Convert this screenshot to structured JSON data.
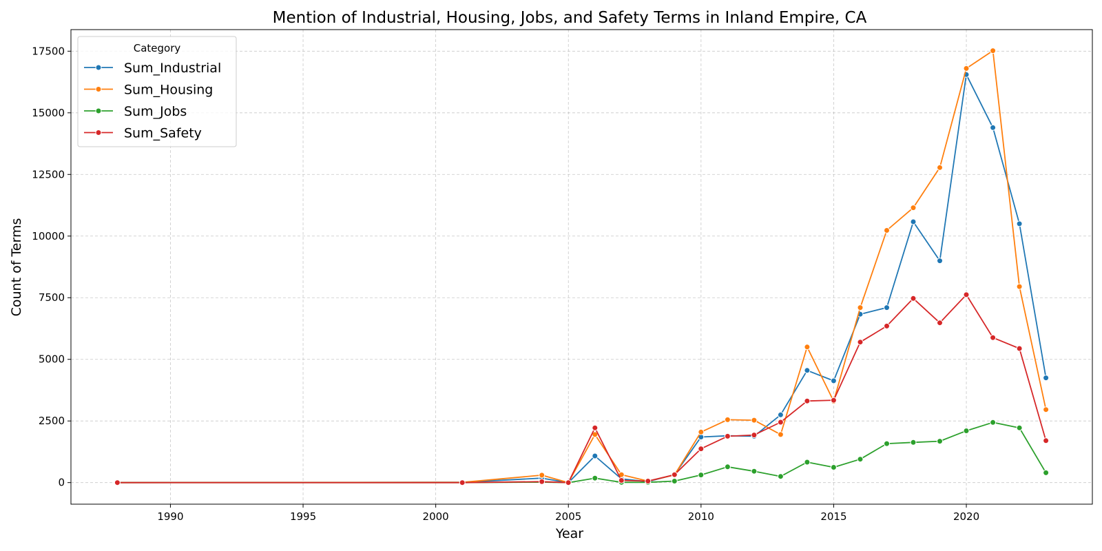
{
  "chart_data": {
    "type": "line",
    "title": "Mention of Industrial, Housing, Jobs, and Safety Terms in Inland Empire, CA",
    "xlabel": "Year",
    "ylabel": "Count of Terms",
    "xlim": [
      1986.25,
      2024.75
    ],
    "ylim": [
      -875,
      18375
    ],
    "xticks": [
      1990,
      1995,
      2000,
      2005,
      2010,
      2015,
      2020
    ],
    "yticks": [
      0,
      2500,
      5000,
      7500,
      10000,
      12500,
      15000,
      17500
    ],
    "grid": true,
    "legend": {
      "title": "Category",
      "placement": "top-left"
    },
    "x": [
      1988,
      2001,
      2004,
      2005,
      2006,
      2007,
      2008,
      2009,
      2010,
      2011,
      2012,
      2013,
      2014,
      2015,
      2016,
      2017,
      2018,
      2019,
      2020,
      2021,
      2022,
      2023
    ],
    "series": [
      {
        "name": "Sum_Industrial",
        "color": "#1f77b4",
        "values": [
          0,
          10,
          180,
          0,
          1080,
          150,
          40,
          320,
          1850,
          1900,
          1880,
          2750,
          4550,
          4130,
          6830,
          7100,
          10580,
          9000,
          16550,
          14400,
          10500,
          4250
        ]
      },
      {
        "name": "Sum_Housing",
        "color": "#ff7f0e",
        "values": [
          0,
          10,
          300,
          0,
          1950,
          320,
          60,
          310,
          2050,
          2550,
          2530,
          1950,
          5500,
          3300,
          7100,
          10230,
          11150,
          12780,
          16800,
          17520,
          7950,
          2960
        ]
      },
      {
        "name": "Sum_Jobs",
        "color": "#2ca02c",
        "values": [
          0,
          0,
          20,
          0,
          180,
          10,
          10,
          60,
          310,
          640,
          460,
          250,
          830,
          620,
          950,
          1580,
          1630,
          1680,
          2100,
          2440,
          2220,
          400
        ]
      },
      {
        "name": "Sum_Safety",
        "color": "#d62728",
        "values": [
          0,
          0,
          40,
          0,
          2220,
          90,
          60,
          320,
          1370,
          1880,
          1930,
          2450,
          3310,
          3340,
          5700,
          6350,
          7470,
          6480,
          7620,
          5880,
          5440,
          1700
        ]
      }
    ]
  }
}
